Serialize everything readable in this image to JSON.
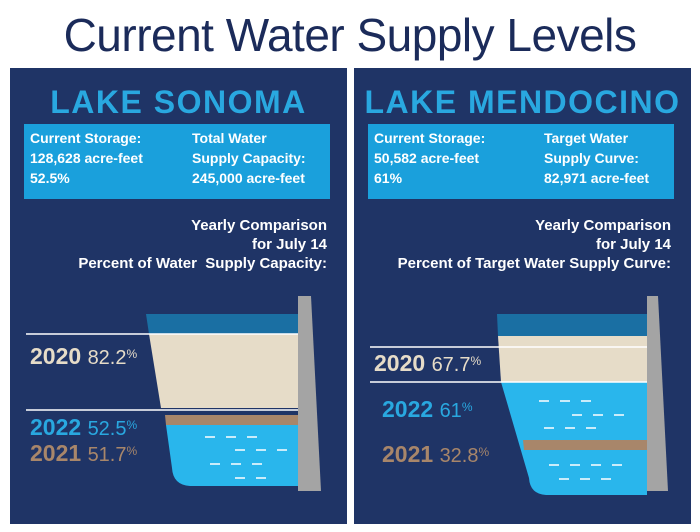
{
  "title": "Current Water Supply Levels",
  "colors": {
    "navy": "#1f3466",
    "info_blue": "#1aa0dc",
    "accent_blue": "#29a8e0",
    "water": "#29b6ec",
    "water_dark": "#1a6fa3",
    "sand": "#e6dcc8",
    "brown": "#a8866a",
    "dam_gray": "#a4a4a4"
  },
  "lakes": [
    {
      "name": "LAKE SONOMA",
      "storage_label": "Current Storage:",
      "storage_value": "128,628 acre-feet",
      "storage_percent": "52.5%",
      "capacity_label_1": "Total Water",
      "capacity_label_2": "Supply Capacity:",
      "capacity_value": "245,000 acre-feet",
      "comparison_1": "Yearly Comparison",
      "comparison_2": "for July 14",
      "comparison_3": "Percent of Water  Supply Capacity:",
      "years": [
        {
          "year": "2020",
          "percent": "82.2",
          "symbol": "%"
        },
        {
          "year": "2022",
          "percent": "52.5",
          "symbol": "%"
        },
        {
          "year": "2021",
          "percent": "51.7",
          "symbol": "%"
        }
      ]
    },
    {
      "name": "LAKE MENDOCINO",
      "storage_label": "Current Storage:",
      "storage_value": "50,582 acre-feet",
      "storage_percent": "61%",
      "capacity_label_1": "Target Water",
      "capacity_label_2": "Supply Curve:",
      "capacity_value": "82,971 acre-feet",
      "comparison_1": "Yearly Comparison",
      "comparison_2": "for July 14",
      "comparison_3": "Percent of Target Water Supply Curve:",
      "years": [
        {
          "year": "2020",
          "percent": "67.7",
          "symbol": "%"
        },
        {
          "year": "2022",
          "percent": "61",
          "symbol": "%"
        },
        {
          "year": "2021",
          "percent": "32.8",
          "symbol": "%"
        }
      ]
    }
  ]
}
